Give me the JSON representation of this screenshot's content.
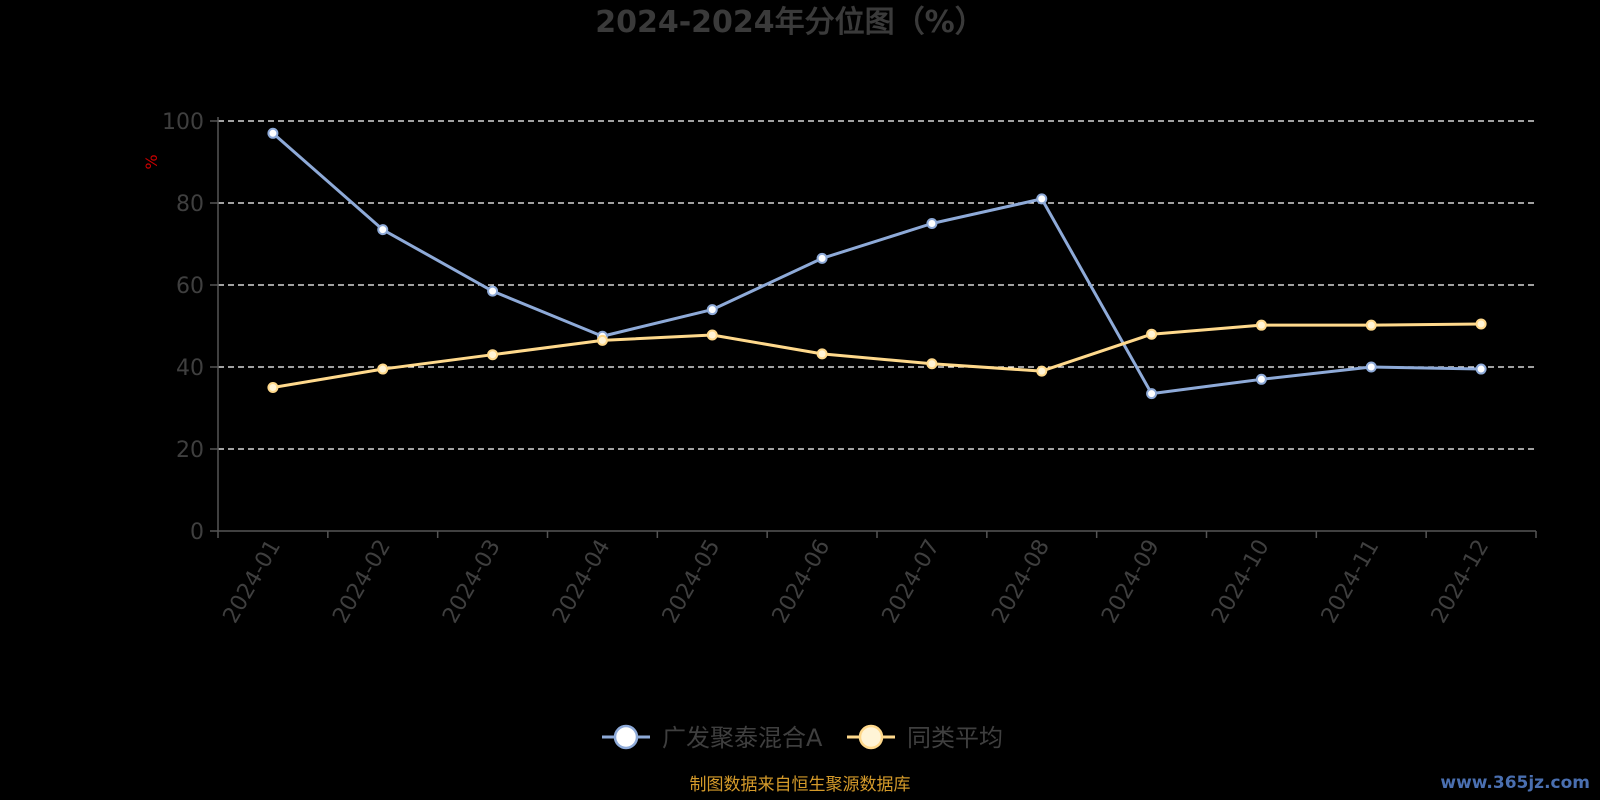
{
  "chart_data": {
    "type": "line",
    "title": "2024-2024年分位图（%）",
    "ylabel": "%",
    "ylim": [
      0,
      100
    ],
    "yticks": [
      0,
      20,
      40,
      60,
      80,
      100
    ],
    "grid": true,
    "legend_position": "bottom-center",
    "categories": [
      "2024-01",
      "2024-02",
      "2024-03",
      "2024-04",
      "2024-05",
      "2024-06",
      "2024-07",
      "2024-08",
      "2024-09",
      "2024-10",
      "2024-11",
      "2024-12"
    ],
    "series": [
      {
        "name": "广发聚泰混合A",
        "color": "#8eaad8",
        "marker_fill": "#ffffff",
        "values": [
          97,
          73.5,
          58.5,
          47.5,
          54,
          66.5,
          75,
          81,
          33.5,
          37,
          40,
          39.5
        ]
      },
      {
        "name": "同类平均",
        "color": "#ffd98c",
        "marker_fill": "#fff4d6",
        "values": [
          35,
          39.5,
          43,
          46.5,
          47.8,
          43.2,
          40.8,
          39,
          48,
          50.2,
          50.2,
          50.5
        ]
      }
    ]
  },
  "source_note": "制图数据来自恒生聚源数据库",
  "watermark": "www.365jz.com"
}
